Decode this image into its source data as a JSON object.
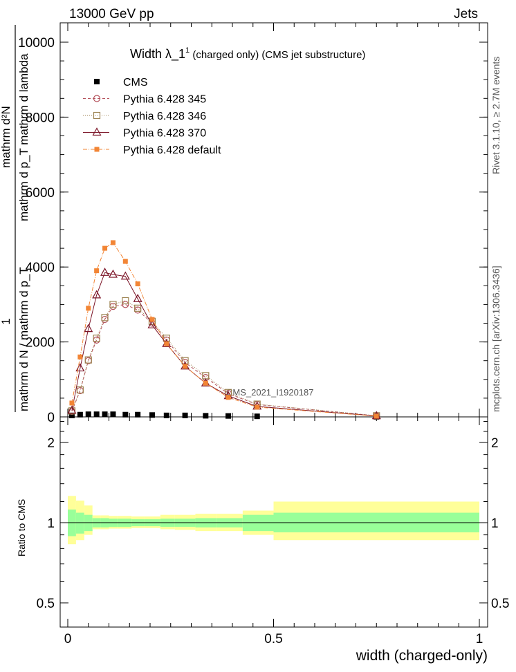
{
  "header": {
    "left": "13000 GeV pp",
    "right": "Jets"
  },
  "title": {
    "main": "Width λ_1",
    "sup": "1",
    "rest": " (charged only) (CMS jet substructure)"
  },
  "side_labels": {
    "rivet": "Rivet 3.1.10, ≥ 2.7M events",
    "mcplots": "mcplots.cern.ch [arXiv:1306.3436]"
  },
  "watermark": "CMS_2021_I1920187",
  "axes": {
    "ylabel_top_num": "mathrm d²N",
    "ylabel_top_den": "mathrm d p_T mathrm d lambda",
    "ylabel_frac_num": "1",
    "ylabel_frac_den": "mathrm d N / mathrm d p_T",
    "xlabel": "width (charged-only)",
    "ratio_ylabel": "Ratio to CMS",
    "main_yticks": [
      "0",
      "2000",
      "4000",
      "6000",
      "8000",
      "10000"
    ],
    "ratio_yticks": [
      "0.5",
      "1",
      "2"
    ],
    "xticks": [
      "0",
      "0.5",
      "1"
    ]
  },
  "legend": [
    {
      "name": "CMS",
      "color": "#000000"
    },
    {
      "name": "Pythia 6.428 345",
      "color": "#b5525c"
    },
    {
      "name": "Pythia 6.428 346",
      "color": "#9c8250"
    },
    {
      "name": "Pythia 6.428 370",
      "color": "#7b1427"
    },
    {
      "name": "Pythia 6.428 default",
      "color": "#f28535"
    }
  ],
  "chart_data": {
    "type": "line",
    "title": "Width λ_1^1 (charged only) (CMS jet substructure)",
    "xlabel": "width (charged-only)",
    "ylabel": "1 / (mathrm d N / mathrm d p_T) · mathrm d²N / (mathrm d p_T mathrm d lambda)",
    "xlim": [
      0,
      1
    ],
    "ylim": [
      0,
      10500
    ],
    "x": [
      0.01,
      0.03,
      0.05,
      0.07,
      0.09,
      0.11,
      0.14,
      0.17,
      0.205,
      0.24,
      0.285,
      0.335,
      0.39,
      0.46,
      0.75
    ],
    "series": [
      {
        "name": "CMS",
        "values": [
          40,
          60,
          70,
          70,
          70,
          70,
          60,
          60,
          50,
          40,
          40,
          30,
          25,
          15,
          2
        ],
        "marker": "square"
      },
      {
        "name": "Pythia 6.428 345",
        "values": [
          150,
          700,
          1500,
          2050,
          2600,
          2950,
          3000,
          2850,
          2500,
          2050,
          1450,
          1050,
          620,
          330,
          30
        ],
        "marker": "circle"
      },
      {
        "name": "Pythia 6.428 346",
        "values": [
          160,
          720,
          1520,
          2100,
          2650,
          3000,
          3100,
          2900,
          2550,
          2100,
          1500,
          1100,
          650,
          340,
          30
        ],
        "marker": "open-square"
      },
      {
        "name": "Pythia 6.428 370",
        "values": [
          170,
          1300,
          2350,
          3250,
          3850,
          3800,
          3750,
          3150,
          2450,
          1950,
          1350,
          900,
          560,
          280,
          25
        ],
        "marker": "triangle"
      },
      {
        "name": "Pythia 6.428 default",
        "values": [
          370,
          1600,
          2900,
          3900,
          4500,
          4650,
          4150,
          3550,
          2600,
          1950,
          1350,
          900,
          520,
          260,
          20
        ],
        "marker": "filled-square"
      }
    ],
    "ratio_panel": {
      "ylabel": "Ratio to CMS",
      "ylim": [
        0.4,
        2.5
      ],
      "scale": "log",
      "x_edges": [
        0,
        0.02,
        0.04,
        0.06,
        0.08,
        0.1,
        0.12,
        0.155,
        0.185,
        0.225,
        0.26,
        0.31,
        0.36,
        0.425,
        0.5,
        1.0
      ],
      "stat_band": [
        [
          0.89,
          1.12
        ],
        [
          0.91,
          1.09
        ],
        [
          0.93,
          1.07
        ],
        [
          0.96,
          1.04
        ],
        [
          0.96,
          1.04
        ],
        [
          0.965,
          1.035
        ],
        [
          0.965,
          1.035
        ],
        [
          0.97,
          1.03
        ],
        [
          0.97,
          1.03
        ],
        [
          0.965,
          1.035
        ],
        [
          0.965,
          1.035
        ],
        [
          0.96,
          1.04
        ],
        [
          0.96,
          1.04
        ],
        [
          0.93,
          1.07
        ],
        [
          0.92,
          1.09
        ]
      ],
      "total_band": [
        [
          0.83,
          1.26
        ],
        [
          0.86,
          1.21
        ],
        [
          0.9,
          1.16
        ],
        [
          0.945,
          1.065
        ],
        [
          0.945,
          1.065
        ],
        [
          0.95,
          1.06
        ],
        [
          0.95,
          1.06
        ],
        [
          0.955,
          1.055
        ],
        [
          0.955,
          1.055
        ],
        [
          0.945,
          1.07
        ],
        [
          0.94,
          1.07
        ],
        [
          0.93,
          1.08
        ],
        [
          0.93,
          1.08
        ],
        [
          0.9,
          1.11
        ],
        [
          0.86,
          1.2
        ]
      ]
    },
    "colors": {
      "stat_band": "#99ff99",
      "total_band": "#ffff99"
    }
  }
}
